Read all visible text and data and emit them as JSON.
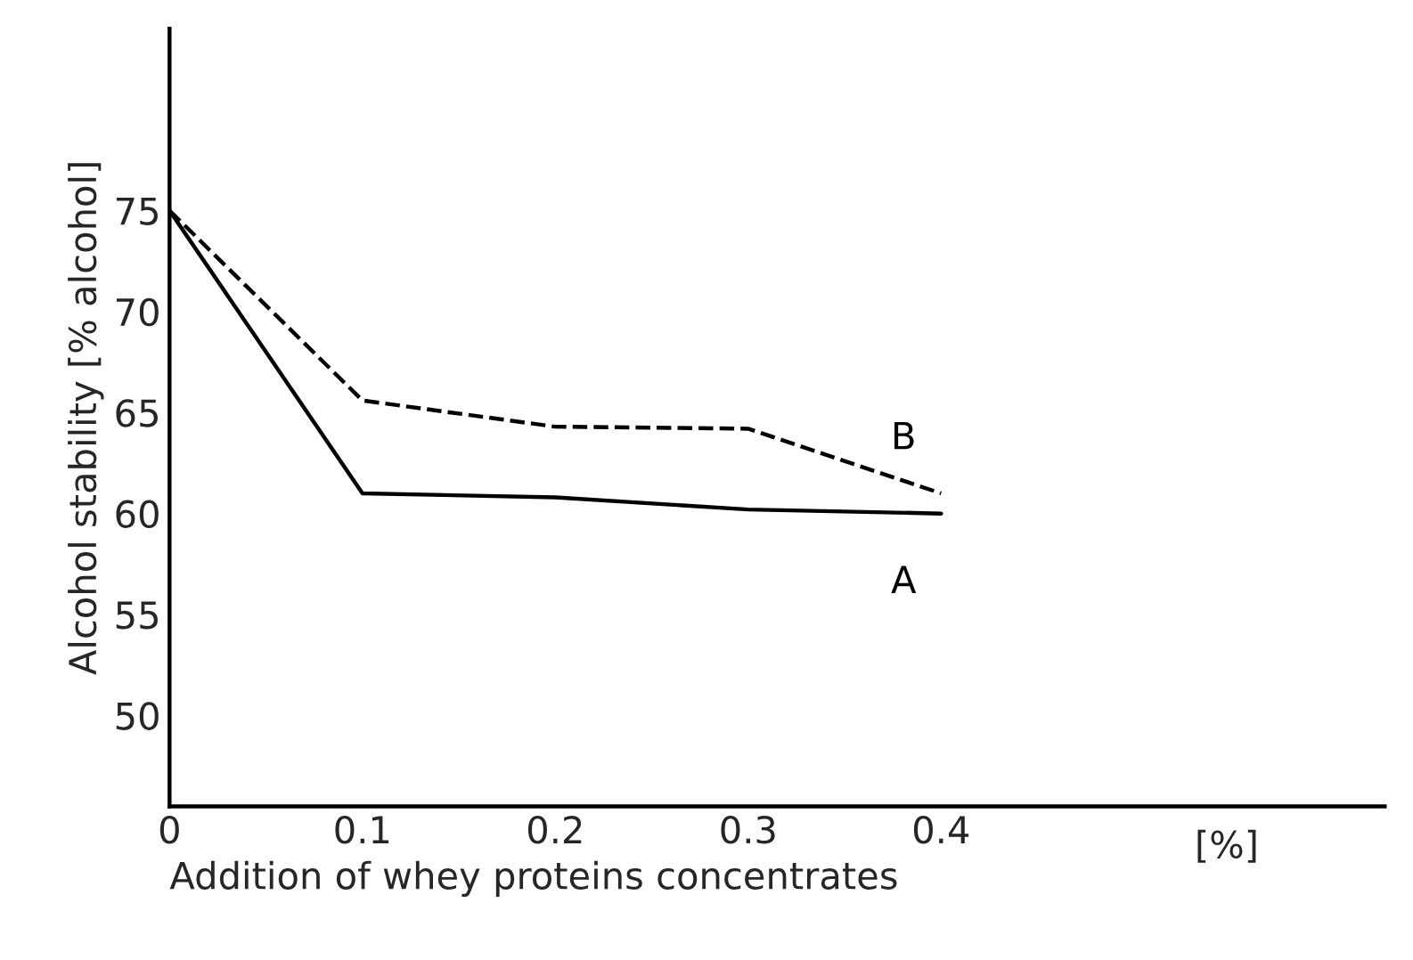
{
  "chart_data": {
    "type": "line",
    "xlabel": "Addition of whey proteins concentrates",
    "ylabel": "Alcohol stability [% alcohol]",
    "x": [
      0,
      0.1,
      0.2,
      0.3,
      0.4
    ],
    "series": [
      {
        "name": "A",
        "color": "#000000",
        "line_style": "solid",
        "values": [
          75,
          61,
          60.8,
          60.2,
          60
        ]
      },
      {
        "name": "B",
        "color": "#000000",
        "line_style": "dashed",
        "values": [
          75,
          65.6,
          64.3,
          64.2,
          61
        ]
      }
    ],
    "xlim": [
      0,
      0.63
    ],
    "ylim": [
      45.5,
      84
    ],
    "xticks": [
      0,
      0.1,
      0.2,
      0.3,
      0.4
    ],
    "yticks": [
      50,
      55,
      60,
      65,
      70,
      75
    ],
    "annotations": [
      "[%]"
    ],
    "grid": false,
    "legend": false,
    "marker": "none"
  }
}
